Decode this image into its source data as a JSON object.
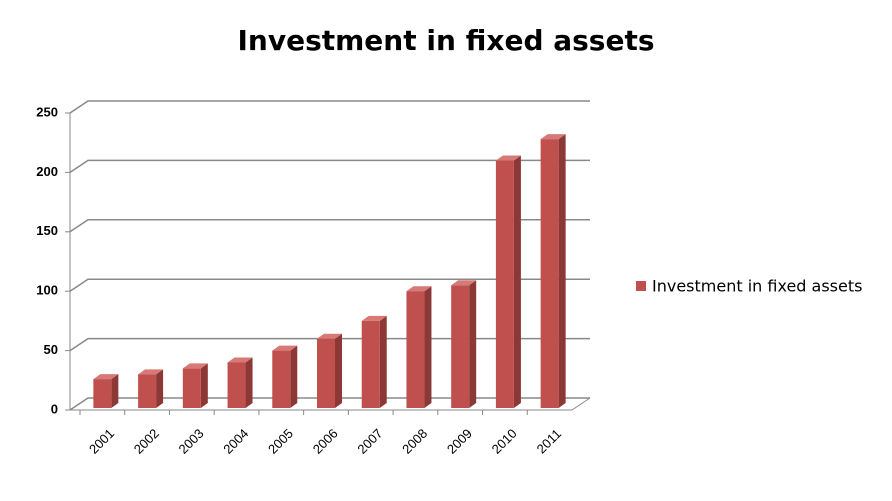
{
  "chart_data": {
    "type": "bar3d",
    "title": "Investment in fixed assets",
    "categories": [
      "2001",
      "2002",
      "2003",
      "2004",
      "2005",
      "2006",
      "2007",
      "2008",
      "2009",
      "2010",
      "2011"
    ],
    "series": [
      {
        "name": "Investment in fixed assets",
        "color": "#c0504d",
        "values": [
          26,
          30,
          35,
          40,
          50,
          60,
          75,
          100,
          105,
          210,
          228
        ]
      }
    ],
    "ylim": [
      0,
      250
    ],
    "yticks": [
      0,
      50,
      100,
      150,
      200,
      250
    ],
    "grid": true,
    "legend": "right"
  }
}
